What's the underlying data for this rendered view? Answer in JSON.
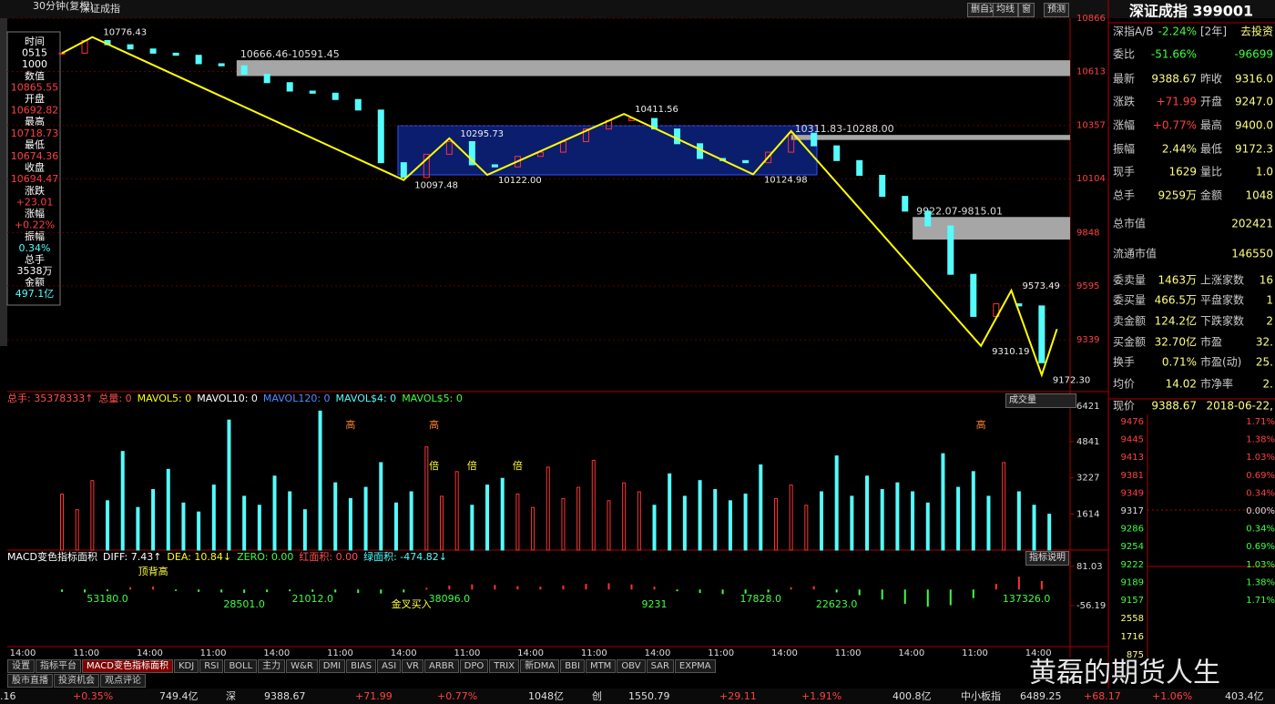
{
  "header": {
    "period": "30分钟(复权)",
    "name": "深证成指",
    "buttons": [
      "删自选",
      "均线",
      "窗",
      "预测"
    ]
  },
  "info_panel": {
    "lines": [
      [
        "时间",
        "#ffffff"
      ],
      [
        "0515",
        "#ffffff"
      ],
      [
        "1000",
        "#ffffff"
      ],
      [
        "数值",
        "#ffffff"
      ],
      [
        "10865.55",
        "#ff4040"
      ],
      [
        "开盘",
        "#ffffff"
      ],
      [
        "10692.82",
        "#ff4040"
      ],
      [
        "最高",
        "#ffffff"
      ],
      [
        "10718.73",
        "#ff4040"
      ],
      [
        "最低",
        "#ffffff"
      ],
      [
        "10674.36",
        "#ff4040"
      ],
      [
        "收盘",
        "#ffffff"
      ],
      [
        "10694.47",
        "#ff4040"
      ],
      [
        "涨跌",
        "#ffffff"
      ],
      [
        "+23.01",
        "#ff4040"
      ],
      [
        "涨幅",
        "#ffffff"
      ],
      [
        "+0.22%",
        "#ff4040"
      ],
      [
        "振幅",
        "#ffffff"
      ],
      [
        "0.34%",
        "#54fcfc"
      ],
      [
        "总手",
        "#ffffff"
      ],
      [
        "3538万",
        "#ffffff"
      ],
      [
        "金额",
        "#ffffff"
      ],
      [
        "497.1亿",
        "#54fcfc"
      ]
    ]
  },
  "price_chart": {
    "ylim": [
      9093,
      10866
    ],
    "yticks": [
      10866,
      10613,
      10357,
      10104,
      9848,
      9595,
      9339
    ],
    "closes": [
      10700,
      10760,
      10740,
      10720,
      10700,
      10690,
      10650,
      10640,
      10600,
      10560,
      10520,
      10510,
      10480,
      10430,
      10180,
      10110,
      10220,
      10280,
      10170,
      10160,
      10210,
      10230,
      10280,
      10340,
      10380,
      10390,
      10340,
      10270,
      10200,
      10190,
      10180,
      10230,
      10320,
      10260,
      10190,
      10120,
      10020,
      9950,
      9880,
      9650,
      9450,
      9510,
      9500,
      9230
    ],
    "up_color": "#ff3232",
    "down_color": "#54fcfc",
    "zigzag": {
      "color": "#ffff00",
      "x": [
        0,
        4,
        45,
        51,
        56,
        74,
        91,
        96,
        121,
        125,
        129,
        131
      ],
      "values": [
        10700,
        10776.43,
        10097.48,
        10295.73,
        10122.0,
        10411.56,
        10124.98,
        10330,
        9310.19,
        9573.49,
        9172.3,
        9390
      ],
      "value_labels": [
        null,
        "10776.43",
        "10097.48",
        "10295.73",
        "10122.00",
        "10411.56",
        "10124.98",
        null,
        "9310.19",
        "9573.49",
        "9172.30",
        null
      ]
    },
    "bands": [
      {
        "label": "10666.46-10591.45",
        "range": [
          10666.46,
          10591.45
        ],
        "x": 23
      },
      {
        "label": "10311.83-10288.00",
        "range": [
          10311.83,
          10288.0
        ],
        "x": 96
      },
      {
        "label": "9922.07-9815.01",
        "range": [
          9922.07,
          9815.01
        ],
        "x": 112
      }
    ]
  },
  "volume_chart": {
    "legend": [
      [
        "总手: 35378333↑",
        "#ff5050"
      ],
      [
        "总量: 0",
        "#ff5050"
      ],
      [
        "MAVOL5: 0",
        "#ffff00"
      ],
      [
        "MAVOL10: 0",
        "#ffffff"
      ],
      [
        "MAVOL120: 0",
        "#4f8cff"
      ],
      [
        "MAVOL$4: 0",
        "#54fcfc"
      ],
      [
        "MAVOL$5: 0",
        "#40ff40"
      ]
    ],
    "selector": "成交量",
    "ylim": [
      0,
      6540
    ],
    "yticks": [
      6421,
      4841,
      3227,
      1614
    ],
    "values": [
      2500,
      1800,
      3100,
      2200,
      4400,
      1900,
      2700,
      3600,
      2100,
      1700,
      2900,
      5800,
      2400,
      2000,
      3300,
      2600,
      1800,
      6200,
      3000,
      2300,
      2800,
      3900,
      2100,
      2600,
      4600,
      2400,
      3500,
      2000,
      2900,
      3200,
      2500,
      1900,
      3700,
      2300,
      2800,
      4000,
      2200,
      3000,
      2600,
      2000,
      3400,
      2400,
      3100,
      2700,
      2200,
      2500,
      3800,
      2300,
      2900,
      2000,
      2600,
      4200,
      2400,
      3300,
      2700,
      3000,
      2600,
      2100,
      4300,
      2800,
      3500,
      2400,
      3900,
      2600,
      2000,
      1600
    ],
    "markers": [
      {
        "x": 38,
        "label": "高"
      },
      {
        "x": 49,
        "label": "高"
      },
      {
        "x": 121,
        "label": "高"
      },
      {
        "x": 49,
        "label": "倍"
      },
      {
        "x": 54,
        "label": "倍"
      },
      {
        "x": 60,
        "label": "倍"
      }
    ]
  },
  "macd": {
    "legend": [
      [
        "MACD变色指标面积",
        "#ffffff"
      ],
      [
        "DIFF: 7.43↑",
        "#ffffff"
      ],
      [
        "DEA: 10.84↓",
        "#ffff00"
      ],
      [
        "ZERO: 0.00",
        "#40ff40"
      ],
      [
        "红面积: 0.00",
        "#ff5050"
      ],
      [
        "绿面积: -474.82↓",
        "#54fcfc"
      ]
    ],
    "help": "指标说明",
    "ylim": [
      -200,
      119
    ],
    "yticks": [
      81.03,
      -56.19
    ],
    "values": [
      -8,
      -10,
      -6,
      8,
      10,
      -5,
      -8,
      -10,
      -12,
      -9,
      -6,
      -8,
      -10,
      -12,
      -14,
      -10,
      6,
      14,
      18,
      16,
      12,
      10,
      14,
      20,
      22,
      18,
      10,
      -6,
      -12,
      -16,
      -14,
      -10,
      8,
      12,
      -10,
      -20,
      -35,
      -50,
      -60,
      -55,
      -30,
      20,
      45,
      30
    ],
    "labels": [
      {
        "x": 12,
        "label": "顶背高"
      },
      {
        "x": 6,
        "label": "53180.0"
      },
      {
        "x": 24,
        "label": "28501.0"
      },
      {
        "x": 33,
        "label": "21012.0"
      },
      {
        "x": 46,
        "label": "金叉买入"
      },
      {
        "x": 51,
        "label": "38096.0"
      },
      {
        "x": 78,
        "label": "9231"
      },
      {
        "x": 92,
        "label": "17828.0"
      },
      {
        "x": 102,
        "label": "22623.0"
      },
      {
        "x": 127,
        "label": "137326.0"
      }
    ]
  },
  "time_axis": [
    "14:00",
    "11:00",
    "14:00",
    "11:00",
    "14:00",
    "11:00",
    "14:00",
    "11:00",
    "14:00",
    "11:00",
    "14:00",
    "11:00",
    "14:00",
    "11:00",
    "14:00",
    "11:00",
    "14:00"
  ],
  "tabs": {
    "row1": [
      "设置",
      "指标平台",
      "MACD变色指标面积",
      "KDJ",
      "RSI",
      "BOLL",
      "主力",
      "W&R",
      "DMI",
      "BIAS",
      "ASI",
      "VR",
      "ARBR",
      "DPO",
      "TRIX",
      "新DMA",
      "BBI",
      "MTM",
      "OBV",
      "SAR",
      "EXPMA"
    ],
    "row2": [
      "股市直播",
      "投资机会",
      "观点评论"
    ]
  },
  "quote_panel": {
    "title": "深证成指 399001",
    "rows": [
      [
        "深指A/B",
        "-2.24%",
        "[2年]",
        "去投资"
      ],
      [
        "委比",
        "-51.66%",
        "",
        "-96699"
      ],
      [
        "最新",
        "9388.67",
        "昨收",
        "9316.0"
      ],
      [
        "涨跌",
        "+71.99",
        "开盘",
        "9247.0"
      ],
      [
        "涨幅",
        "+0.77%",
        "最高",
        "9400.0"
      ],
      [
        "振幅",
        "2.44%",
        "最低",
        "9172.3"
      ],
      [
        "现手",
        "1629",
        "量比",
        "1.0"
      ],
      [
        "总手",
        "9259万",
        "金额",
        "1048"
      ],
      [
        "总市值",
        "202421"
      ],
      [
        "流通市值",
        "146550"
      ],
      [
        "委卖量",
        "1463万",
        "上涨家数",
        "16"
      ],
      [
        "委买量",
        "466.5万",
        "平盘家数",
        "1"
      ],
      [
        "卖金额",
        "124.2亿",
        "下跌家数",
        "2"
      ],
      [
        "买金额",
        "32.70亿",
        "市盈",
        "32."
      ],
      [
        "换手",
        "0.71%",
        "市盈(动)",
        "25."
      ],
      [
        "均价",
        "14.02",
        "市净率",
        "2."
      ],
      [
        "现价",
        "9388.67",
        "",
        "2018-06-22,"
      ]
    ],
    "mini_prices": [
      "9476",
      "9445",
      "9413",
      "9381",
      "9349",
      "9317",
      "9286",
      "9254",
      "9222",
      "9189",
      "9157"
    ],
    "mini_pcts": [
      "1.71%",
      "1.38%",
      "1.03%",
      "0.69%",
      "0.34%",
      "0.00%",
      "0.34%",
      "0.69%",
      "1.03%",
      "1.38%",
      "1.71%"
    ],
    "mini_volumes": [
      "2558",
      "1716",
      "875"
    ]
  },
  "status_bar": [
    ".16",
    "+0.35%",
    "749.4亿",
    "深",
    "9388.67",
    "+71.99",
    "+0.77%",
    "1048亿",
    "创",
    "1550.79",
    "+29.11",
    "+1.91%",
    "400.8亿",
    "中小板指",
    "6489.25",
    "+68.17",
    "+1.06%",
    "403.4亿"
  ],
  "watermark": "黄磊的期货人生"
}
